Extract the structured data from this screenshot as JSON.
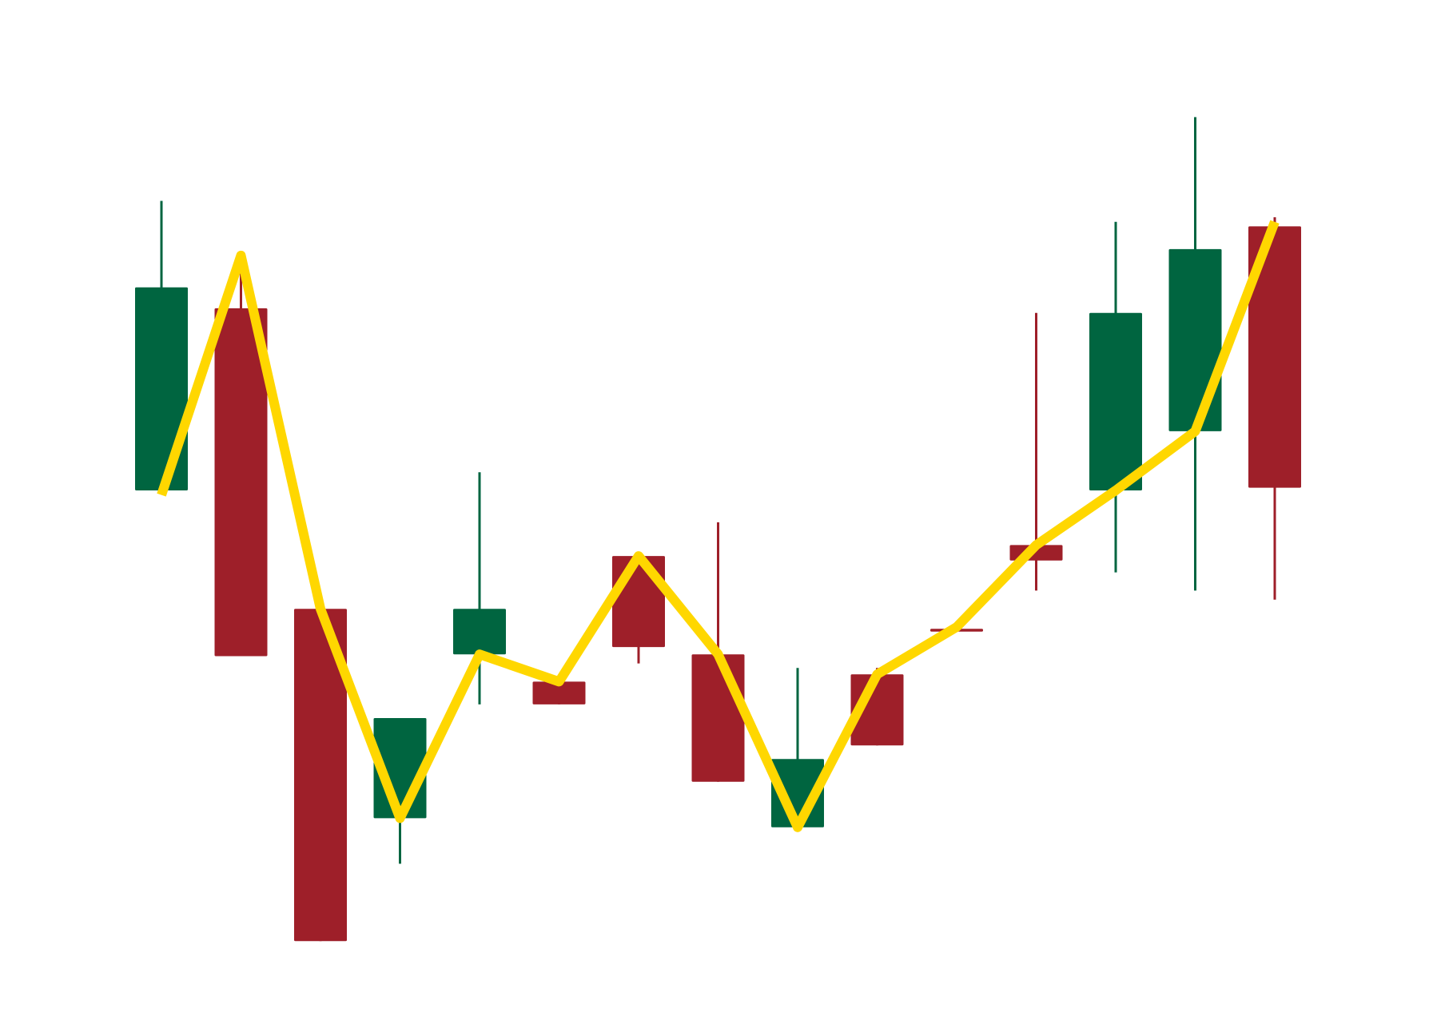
{
  "chart_data": {
    "type": "candlestick",
    "title": "",
    "xlabel": "",
    "ylabel": "",
    "axes_visible": false,
    "grid": false,
    "legend": "none",
    "ylim": [
      0,
      100
    ],
    "colors": {
      "up": "#006540",
      "down": "#9e1f29",
      "line": "#ffd700",
      "background": "#ffffff"
    },
    "candles": [
      {
        "open": 50.0,
        "high": 81.8,
        "low": 50.0,
        "close": 72.3
      },
      {
        "open": 70.0,
        "high": 75.8,
        "low": 31.8,
        "close": 31.8
      },
      {
        "open": 37.0,
        "high": 37.0,
        "low": 0.5,
        "close": 0.5
      },
      {
        "open": 14.0,
        "high": 25.0,
        "low": 9.0,
        "close": 25.0
      },
      {
        "open": 32.0,
        "high": 52.0,
        "low": 26.5,
        "close": 37.0
      },
      {
        "open": 29.0,
        "high": 29.0,
        "low": 26.5,
        "close": 26.5
      },
      {
        "open": 42.8,
        "high": 42.8,
        "low": 31.0,
        "close": 32.8
      },
      {
        "open": 32.0,
        "high": 46.5,
        "low": 18.0,
        "close": 18.0
      },
      {
        "open": 13.0,
        "high": 30.5,
        "low": 13.0,
        "close": 20.5
      },
      {
        "open": 29.8,
        "high": 30.5,
        "low": 22.0,
        "close": 22.0
      },
      {
        "open": 34.8,
        "high": 34.8,
        "low": 34.5,
        "close": 34.5
      },
      {
        "open": 44.0,
        "high": 69.5,
        "low": 39.0,
        "close": 42.3
      },
      {
        "open": 50.0,
        "high": 79.5,
        "low": 41.0,
        "close": 69.5
      },
      {
        "open": 56.5,
        "high": 91.0,
        "low": 39.0,
        "close": 76.5
      },
      {
        "open": 79.0,
        "high": 80.0,
        "low": 38.0,
        "close": 50.3
      }
    ],
    "line": {
      "values": [
        49.5,
        75.8,
        37.0,
        14.0,
        32.0,
        29.0,
        42.8,
        32.0,
        13.0,
        29.8,
        35.0,
        44.0,
        50.0,
        56.5,
        79.5
      ]
    }
  }
}
